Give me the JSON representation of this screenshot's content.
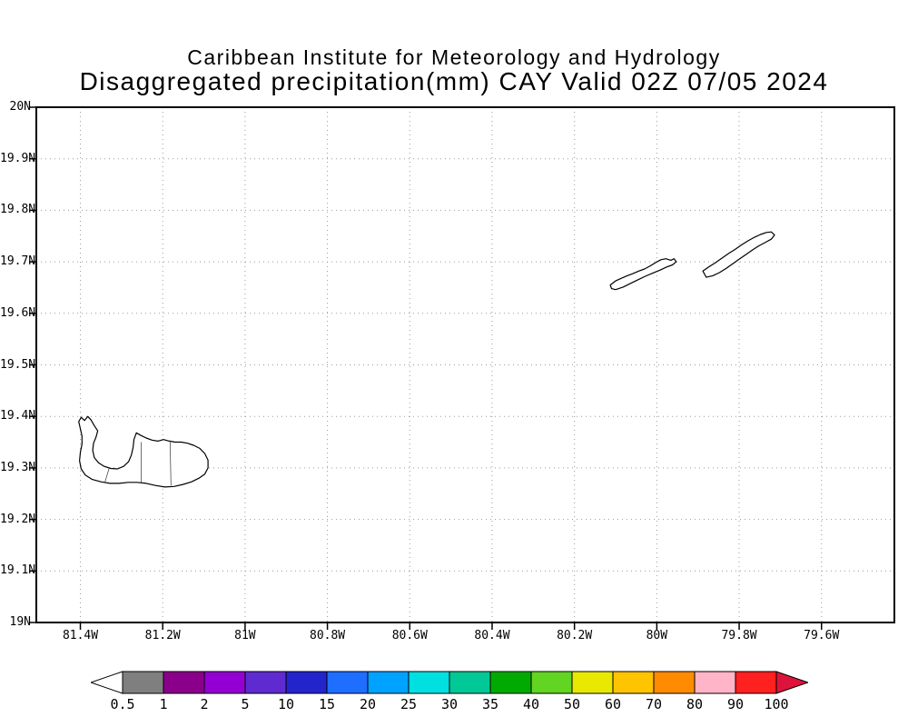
{
  "header": {
    "line1": "Caribbean Institute for Meteorology and Hydrology",
    "line2": "Disaggregated precipitation(mm) CAY Valid 02Z 07/05 2024"
  },
  "chart_data": {
    "type": "map",
    "institution": "Caribbean Institute for Meteorology and Hydrology",
    "title": "Disaggregated precipitation(mm) CAY Valid 02Z 07/05 2024",
    "region": "CAY",
    "valid_time": "02Z 07/05 2024",
    "units": "mm",
    "grid": true,
    "lat_range": [
      19.0,
      20.0
    ],
    "lon_range": [
      -81.507,
      -79.423
    ],
    "y_ticks": [
      {
        "label": "20N",
        "lat": 20.0
      },
      {
        "label": "19.9N",
        "lat": 19.9
      },
      {
        "label": "19.8N",
        "lat": 19.8
      },
      {
        "label": "19.7N",
        "lat": 19.7
      },
      {
        "label": "19.6N",
        "lat": 19.6
      },
      {
        "label": "19.5N",
        "lat": 19.5
      },
      {
        "label": "19.4N",
        "lat": 19.4
      },
      {
        "label": "19.3N",
        "lat": 19.3
      },
      {
        "label": "19.2N",
        "lat": 19.2
      },
      {
        "label": "19.1N",
        "lat": 19.1
      },
      {
        "label": "19N",
        "lat": 19.0
      }
    ],
    "x_ticks": [
      {
        "label": "81.4W",
        "lon": -81.4
      },
      {
        "label": "81.2W",
        "lon": -81.2
      },
      {
        "label": "81W",
        "lon": -81.0
      },
      {
        "label": "80.8W",
        "lon": -80.8
      },
      {
        "label": "80.6W",
        "lon": -80.6
      },
      {
        "label": "80.4W",
        "lon": -80.4
      },
      {
        "label": "80.2W",
        "lon": -80.2
      },
      {
        "label": "80W",
        "lon": -80.0
      },
      {
        "label": "79.8W",
        "lon": -79.8
      },
      {
        "label": "79.6W",
        "lon": -79.6
      }
    ],
    "precip_shaded_regions": [],
    "islands": [
      {
        "name": "Grand Cayman",
        "coast": [
          [
            -81.404,
            19.39
          ],
          [
            -81.398,
            19.398
          ],
          [
            -81.39,
            19.392
          ],
          [
            -81.382,
            19.4
          ],
          [
            -81.374,
            19.393
          ],
          [
            -81.366,
            19.382
          ],
          [
            -81.358,
            19.372
          ],
          [
            -81.362,
            19.36
          ],
          [
            -81.368,
            19.348
          ],
          [
            -81.37,
            19.334
          ],
          [
            -81.366,
            19.32
          ],
          [
            -81.356,
            19.31
          ],
          [
            -81.342,
            19.303
          ],
          [
            -81.326,
            19.299
          ],
          [
            -81.31,
            19.298
          ],
          [
            -81.295,
            19.303
          ],
          [
            -81.283,
            19.312
          ],
          [
            -81.276,
            19.325
          ],
          [
            -81.272,
            19.34
          ],
          [
            -81.27,
            19.355
          ],
          [
            -81.264,
            19.368
          ],
          [
            -81.253,
            19.363
          ],
          [
            -81.24,
            19.358
          ],
          [
            -81.226,
            19.354
          ],
          [
            -81.212,
            19.352
          ],
          [
            -81.198,
            19.355
          ],
          [
            -81.184,
            19.352
          ],
          [
            -81.17,
            19.35
          ],
          [
            -81.155,
            19.35
          ],
          [
            -81.14,
            19.348
          ],
          [
            -81.125,
            19.344
          ],
          [
            -81.11,
            19.338
          ],
          [
            -81.098,
            19.328
          ],
          [
            -81.09,
            19.315
          ],
          [
            -81.09,
            19.3
          ],
          [
            -81.098,
            19.288
          ],
          [
            -81.112,
            19.28
          ],
          [
            -81.13,
            19.273
          ],
          [
            -81.15,
            19.268
          ],
          [
            -81.172,
            19.264
          ],
          [
            -81.195,
            19.263
          ],
          [
            -81.218,
            19.266
          ],
          [
            -81.24,
            19.27
          ],
          [
            -81.262,
            19.272
          ],
          [
            -81.284,
            19.272
          ],
          [
            -81.306,
            19.27
          ],
          [
            -81.328,
            19.27
          ],
          [
            -81.35,
            19.273
          ],
          [
            -81.372,
            19.278
          ],
          [
            -81.388,
            19.286
          ],
          [
            -81.398,
            19.298
          ],
          [
            -81.402,
            19.314
          ],
          [
            -81.4,
            19.33
          ],
          [
            -81.396,
            19.346
          ],
          [
            -81.396,
            19.362
          ],
          [
            -81.4,
            19.376
          ]
        ]
      },
      {
        "name": "Little Cayman",
        "coast": [
          [
            -80.113,
            19.655
          ],
          [
            -80.1,
            19.663
          ],
          [
            -80.086,
            19.668
          ],
          [
            -80.072,
            19.673
          ],
          [
            -80.058,
            19.677
          ],
          [
            -80.044,
            19.682
          ],
          [
            -80.03,
            19.686
          ],
          [
            -80.016,
            19.692
          ],
          [
            -80.002,
            19.699
          ],
          [
            -79.99,
            19.704
          ],
          [
            -79.978,
            19.706
          ],
          [
            -79.966,
            19.703
          ],
          [
            -79.958,
            19.706
          ],
          [
            -79.953,
            19.7
          ],
          [
            -79.962,
            19.694
          ],
          [
            -79.976,
            19.69
          ],
          [
            -79.992,
            19.684
          ],
          [
            -80.01,
            19.678
          ],
          [
            -80.028,
            19.672
          ],
          [
            -80.046,
            19.665
          ],
          [
            -80.064,
            19.658
          ],
          [
            -80.082,
            19.651
          ],
          [
            -80.1,
            19.646
          ],
          [
            -80.11,
            19.648
          ]
        ]
      },
      {
        "name": "Cayman Brac",
        "coast": [
          [
            -79.888,
            19.682
          ],
          [
            -79.874,
            19.69
          ],
          [
            -79.858,
            19.698
          ],
          [
            -79.842,
            19.707
          ],
          [
            -79.826,
            19.716
          ],
          [
            -79.81,
            19.724
          ],
          [
            -79.794,
            19.733
          ],
          [
            -79.778,
            19.741
          ],
          [
            -79.762,
            19.748
          ],
          [
            -79.748,
            19.753
          ],
          [
            -79.734,
            19.757
          ],
          [
            -79.722,
            19.758
          ],
          [
            -79.714,
            19.752
          ],
          [
            -79.722,
            19.744
          ],
          [
            -79.736,
            19.738
          ],
          [
            -79.752,
            19.731
          ],
          [
            -79.768,
            19.723
          ],
          [
            -79.784,
            19.714
          ],
          [
            -79.8,
            19.705
          ],
          [
            -79.816,
            19.696
          ],
          [
            -79.832,
            19.687
          ],
          [
            -79.848,
            19.679
          ],
          [
            -79.864,
            19.673
          ],
          [
            -79.88,
            19.67
          ]
        ]
      }
    ],
    "district_boundaries": [
      [
        [
          -81.34,
          19.273
        ],
        [
          -81.33,
          19.3
        ]
      ],
      [
        [
          -81.252,
          19.27
        ],
        [
          -81.252,
          19.35
        ]
      ],
      [
        [
          -81.18,
          19.266
        ],
        [
          -81.182,
          19.35
        ]
      ]
    ],
    "colorbar": {
      "labels": [
        "0.5",
        "1",
        "2",
        "5",
        "10",
        "15",
        "20",
        "25",
        "30",
        "35",
        "40",
        "50",
        "60",
        "70",
        "80",
        "90",
        "100"
      ],
      "segment_colors": [
        "#7f7f7f",
        "#8b008b",
        "#9400d3",
        "#5f2bd0",
        "#2424cc",
        "#1e6eff",
        "#00a2ff",
        "#00e0e0",
        "#00c896",
        "#00aa00",
        "#62d422",
        "#e8e800",
        "#ffc400",
        "#ff8c00",
        "#ffb4c8",
        "#ff2020"
      ],
      "below_min_color": "#ffffff",
      "above_max_color": "#dc143c"
    }
  }
}
